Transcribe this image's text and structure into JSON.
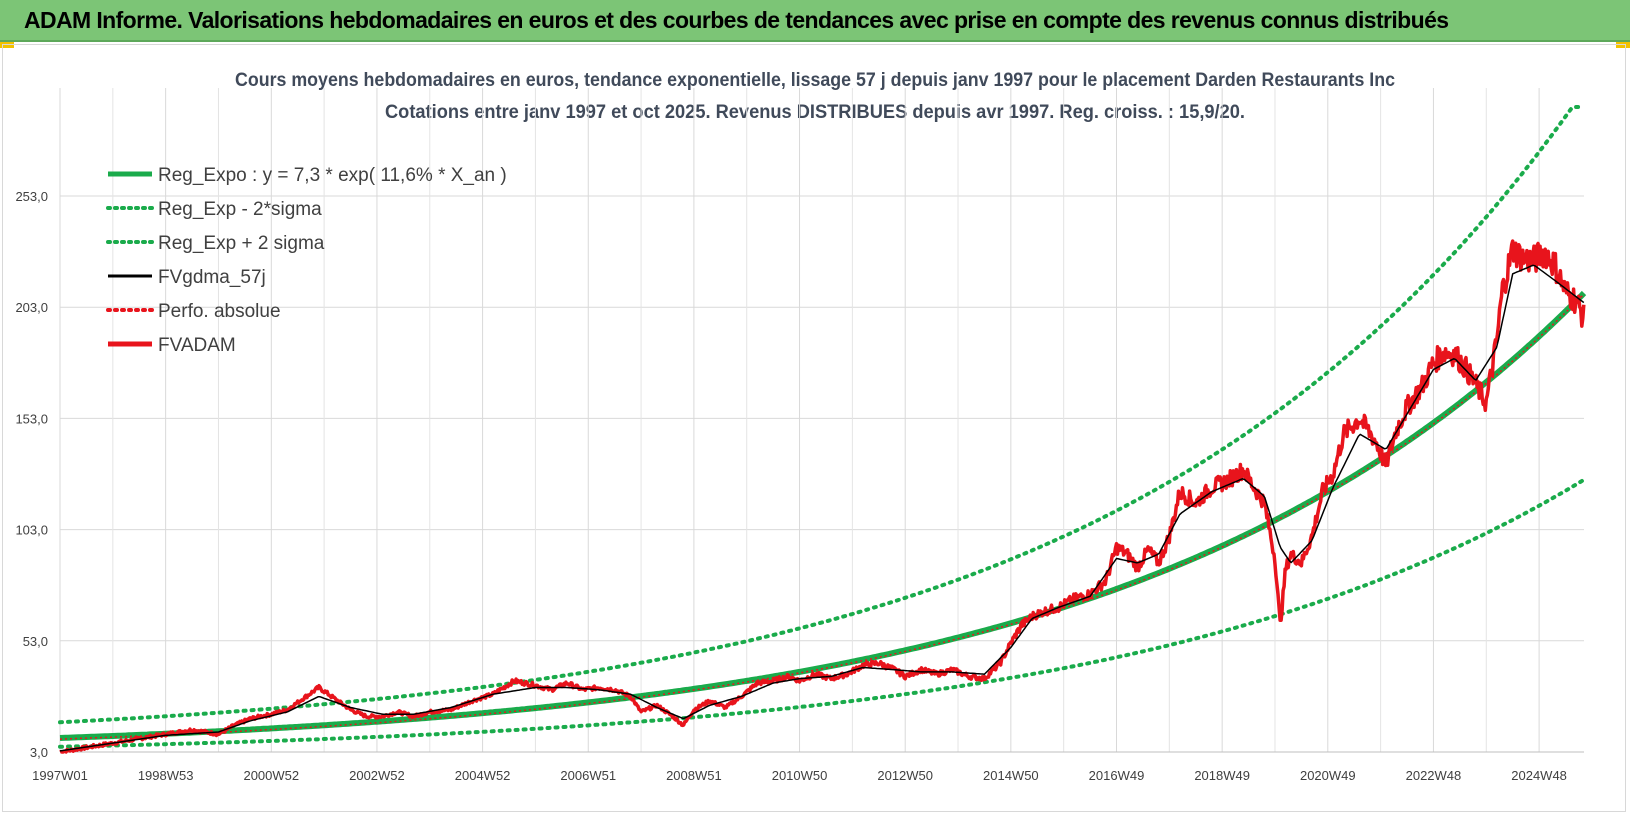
{
  "banner": {
    "title": "ADAM Informe. Valorisations hebdomadaires en euros et des courbes de tendances avec prise en compte des revenus connus distribués",
    "background_color": "#7cc576"
  },
  "chart_data": {
    "type": "line",
    "title_line1": "Cours moyens hebdomadaires en euros, tendance exponentielle, lissage 57 j depuis janv 1997 pour le placement Darden Restaurants Inc",
    "title_line2": "Cotations entre janv 1997 et oct 2025. Revenus DISTRIBUES depuis avr 1997. Reg. croiss. : 15,9/20.",
    "xlabel": "",
    "ylabel": "",
    "xlim": [
      1997.0,
      2025.85
    ],
    "ylim": [
      3,
      300
    ],
    "y_ticks": [
      "3,0",
      "53,0",
      "103,0",
      "153,0",
      "203,0",
      "253,0"
    ],
    "x_ticks": [
      "1997W01",
      "1998W53",
      "2000W52",
      "2002W52",
      "2004W52",
      "2006W51",
      "2008W51",
      "2010W50",
      "2012W50",
      "2014W50",
      "2016W49",
      "2018W49",
      "2020W49",
      "2022W48",
      "2024W48"
    ],
    "x_tick_values": [
      1997.0,
      1999.0,
      2001.0,
      2003.0,
      2005.0,
      2007.0,
      2009.0,
      2011.0,
      2013.0,
      2015.0,
      2017.0,
      2019.0,
      2021.0,
      2023.0,
      2025.0
    ],
    "grid": true,
    "legend_position": "top-left",
    "legend": [
      {
        "label": "Reg_Expo : y = 7,3 * exp( 11,6% *  X_an )",
        "color": "#1aab4b",
        "style": "solid-thick"
      },
      {
        "label": "Reg_Exp - 2*sigma",
        "color": "#1aab4b",
        "style": "dotted"
      },
      {
        "label": "Reg_Exp + 2 sigma",
        "color": "#1aab4b",
        "style": "dotted"
      },
      {
        "label": "FVgdma_57j",
        "color": "#000000",
        "style": "solid"
      },
      {
        "label": "Perfo. absolue",
        "color": "#e8141c",
        "style": "dotted"
      },
      {
        "label": "FVADAM",
        "color": "#e8141c",
        "style": "solid-thick"
      }
    ],
    "regression": {
      "a": 7.3,
      "rate": 0.116,
      "x0": 1997.0
    },
    "bands_factor": {
      "lower": 0.6,
      "upper": 1.42
    },
    "upper_cap": 293,
    "series_fvadam": {
      "x": [
        1997.0,
        1997.5,
        1998.0,
        1998.5,
        1999.0,
        1999.5,
        2000.0,
        2000.3,
        2000.6,
        2001.0,
        2001.3,
        2001.6,
        2001.9,
        2002.2,
        2002.5,
        2002.8,
        2003.1,
        2003.4,
        2003.7,
        2004.0,
        2004.4,
        2004.8,
        2005.2,
        2005.6,
        2006.0,
        2006.3,
        2006.6,
        2006.9,
        2007.2,
        2007.5,
        2007.8,
        2008.0,
        2008.3,
        2008.6,
        2008.8,
        2009.0,
        2009.3,
        2009.6,
        2009.9,
        2010.2,
        2010.5,
        2010.8,
        2011.0,
        2011.3,
        2011.6,
        2011.9,
        2012.2,
        2012.5,
        2012.8,
        2013.0,
        2013.3,
        2013.6,
        2013.9,
        2014.2,
        2014.5,
        2014.8,
        2015.0,
        2015.2,
        2015.4,
        2015.6,
        2015.9,
        2016.2,
        2016.5,
        2016.8,
        2017.0,
        2017.2,
        2017.4,
        2017.6,
        2017.8,
        2018.0,
        2018.2,
        2018.5,
        2018.8,
        2019.1,
        2019.4,
        2019.6,
        2019.8,
        2020.0,
        2020.1,
        2020.2,
        2020.3,
        2020.5,
        2020.7,
        2020.9,
        2021.1,
        2021.3,
        2021.6,
        2021.9,
        2022.1,
        2022.3,
        2022.5,
        2022.8,
        2023.0,
        2023.2,
        2023.4,
        2023.6,
        2023.8,
        2024.0,
        2024.2,
        2024.3,
        2024.5,
        2024.7,
        2024.9,
        2025.1,
        2025.3,
        2025.5,
        2025.7,
        2025.85
      ],
      "y": [
        3,
        5,
        7,
        9,
        11,
        13,
        11,
        15,
        18,
        20,
        22,
        27,
        32,
        27,
        22,
        19,
        19,
        21,
        19,
        21,
        22,
        26,
        29,
        35,
        33,
        31,
        34,
        31,
        32,
        31,
        28,
        21,
        24,
        19,
        15,
        22,
        26,
        23,
        28,
        34,
        35,
        37,
        35,
        38,
        36,
        38,
        42,
        43,
        40,
        37,
        40,
        38,
        40,
        37,
        36,
        43,
        52,
        60,
        64,
        66,
        68,
        72,
        74,
        80,
        95,
        92,
        86,
        94,
        88,
        100,
        120,
        115,
        122,
        125,
        130,
        122,
        115,
        90,
        60,
        85,
        92,
        88,
        100,
        120,
        128,
        146,
        153,
        143,
        132,
        148,
        158,
        168,
        178,
        183,
        182,
        176,
        168,
        160,
        188,
        210,
        229,
        225,
        224,
        228,
        222,
        210,
        206,
        198
      ]
    },
    "series_fvgdma": {
      "x": [
        1997.0,
        1998.0,
        1999.0,
        2000.0,
        2000.6,
        2001.3,
        2001.9,
        2002.5,
        2003.1,
        2003.7,
        2004.4,
        2005.2,
        2006.0,
        2006.6,
        2007.2,
        2007.8,
        2008.3,
        2008.8,
        2009.3,
        2009.9,
        2010.5,
        2011.0,
        2011.6,
        2012.2,
        2012.8,
        2013.3,
        2013.9,
        2014.5,
        2015.0,
        2015.4,
        2015.9,
        2016.5,
        2017.0,
        2017.4,
        2017.8,
        2018.2,
        2018.8,
        2019.4,
        2019.8,
        2020.1,
        2020.3,
        2020.7,
        2021.1,
        2021.6,
        2022.1,
        2022.5,
        2023.0,
        2023.4,
        2023.8,
        2024.2,
        2024.5,
        2024.9,
        2025.3,
        2025.85
      ],
      "y": [
        3.5,
        7,
        10.5,
        12,
        17,
        21,
        28,
        23,
        20,
        20,
        23,
        29,
        32,
        32,
        31,
        29,
        23,
        18,
        24,
        28,
        34,
        36,
        37,
        41,
        40,
        39,
        39,
        38,
        50,
        63,
        68,
        73,
        90,
        88,
        92,
        110,
        120,
        126,
        118,
        95,
        88,
        98,
        122,
        146,
        139,
        155,
        175,
        180,
        170,
        185,
        218,
        222,
        215,
        205
      ]
    }
  }
}
